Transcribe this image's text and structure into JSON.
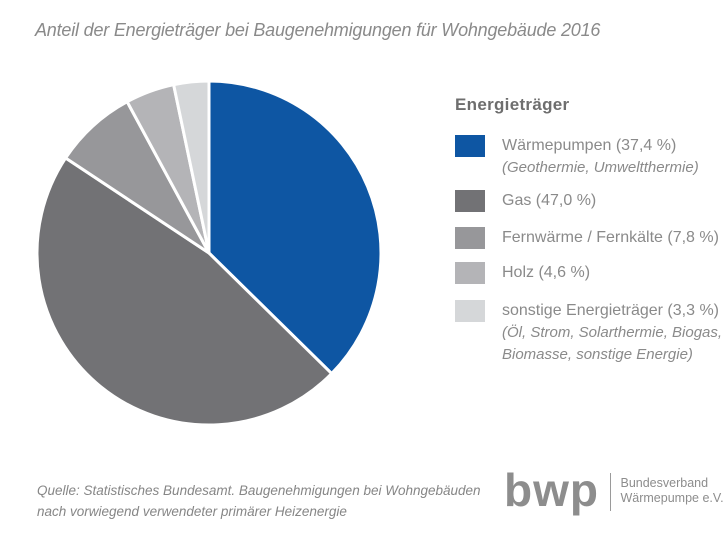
{
  "title": "Anteil der Energieträger bei Baugenehmigungen für Wohngebäude 2016",
  "legend": {
    "title": "Energieträger",
    "items": [
      {
        "label": "Wärmepumpen (37,4 %)",
        "sublabel": "(Geothermie, Umweltthermie)",
        "color": "#0E56A3"
      },
      {
        "label": "Gas (47,0 %)",
        "sublabel": "",
        "color": "#727275"
      },
      {
        "label": "Fernwärme / Fernkälte (7,8 %)",
        "sublabel": "",
        "color": "#97979A"
      },
      {
        "label": "Holz (4,6 %)",
        "sublabel": "",
        "color": "#B4B4B7"
      },
      {
        "label": "sonstige Energieträger (3,3 %)",
        "sublabel": "(Öl, Strom, Solarthermie, Biogas,\nBiomasse, sonstige Energie)",
        "color": "#D5D7D9"
      }
    ]
  },
  "footer": {
    "source": "Quelle: Statistisches Bundesamt. Baugenehmigungen bei Wohngebäuden\nnach vorwiegend verwendeter primärer Heizenergie",
    "logo": {
      "wordmark": "bwp",
      "org": "Bundesverband\nWärmepumpe e.V."
    }
  },
  "chart_data": {
    "type": "pie",
    "title": "Anteil der Energieträger bei Baugenehmigungen für Wohngebäude 2016",
    "categories": [
      "Wärmepumpen",
      "Gas",
      "Fernwärme / Fernkälte",
      "Holz",
      "sonstige Energieträger"
    ],
    "values": [
      37.4,
      47.0,
      7.8,
      4.6,
      3.3
    ],
    "unit": "%",
    "colors": [
      "#0E56A3",
      "#727275",
      "#97979A",
      "#B4B4B7",
      "#D5D7D9"
    ],
    "start_angle_deg": 0,
    "direction": "clockwise",
    "slice_gap_color": "#FFFFFF",
    "legend_position": "right"
  }
}
